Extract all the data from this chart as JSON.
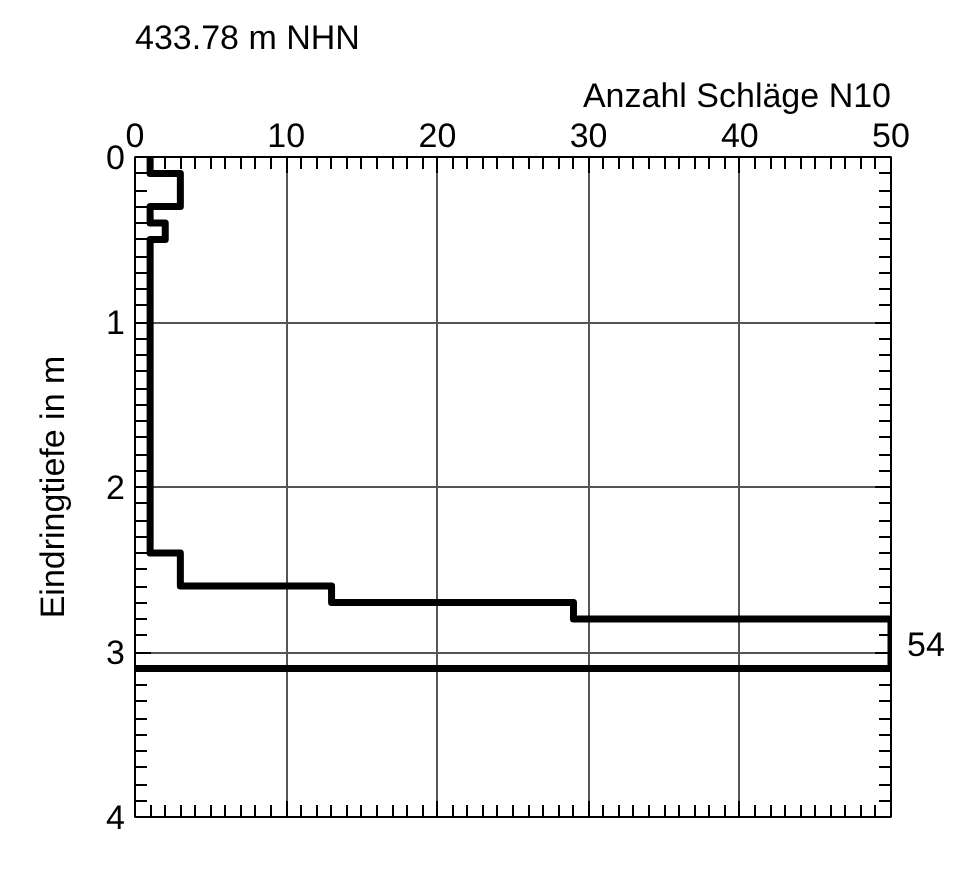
{
  "chart_data": {
    "type": "step",
    "orientation": "horizontal",
    "xlabel": "Anzahl Schläge N10",
    "ylabel": "Eindringtiefe in m",
    "x": [
      0,
      0.1,
      0.3,
      0.4,
      0.5,
      2.4,
      2.6,
      2.7,
      2.8,
      3.1
    ],
    "values": [
      1,
      3,
      1,
      2,
      1,
      3,
      13,
      29,
      50,
      0
    ],
    "color": "#000000",
    "xlim": [
      0,
      50
    ],
    "xticks": [
      0,
      10,
      20,
      30,
      40,
      50
    ],
    "ylim": [
      4,
      0
    ],
    "yticks": [
      0,
      1,
      2,
      3,
      4
    ],
    "grid": true,
    "annotations": [
      "433.78 m NHN",
      {
        "text": "54",
        "x": 50,
        "y": 2.95
      }
    ]
  }
}
